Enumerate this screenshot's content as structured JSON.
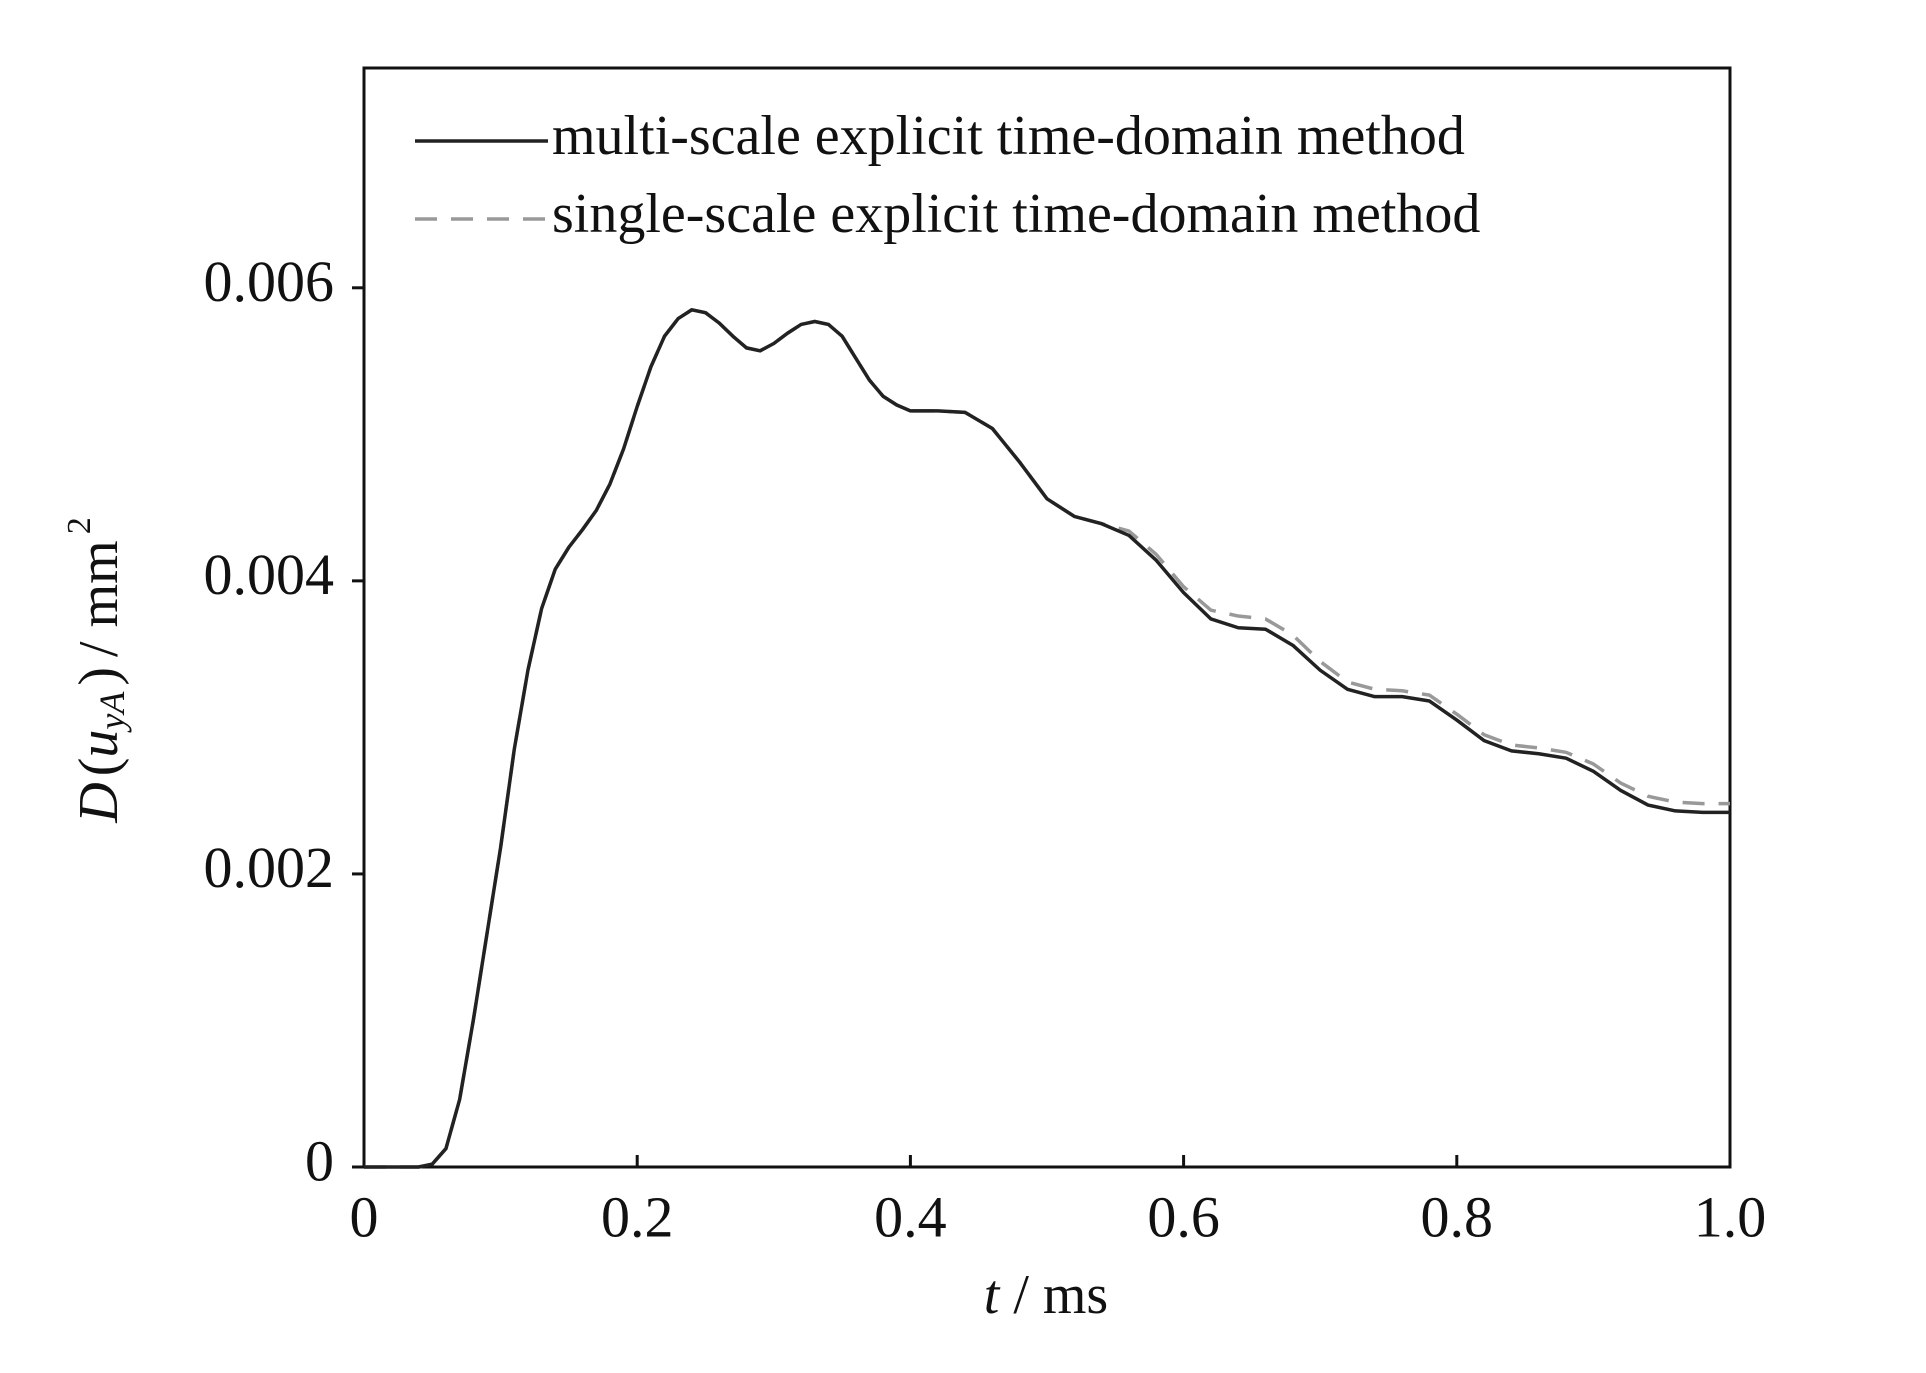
{
  "chart_data": {
    "type": "line",
    "x_label": [
      "t",
      "/ ms"
    ],
    "y_label": [
      "D",
      "(",
      "u",
      "yA",
      ")",
      "/ mm",
      "2"
    ],
    "x": [
      0,
      0.02,
      0.04,
      0.05,
      0.06,
      0.07,
      0.08,
      0.09,
      0.1,
      0.11,
      0.12,
      0.13,
      0.14,
      0.15,
      0.16,
      0.17,
      0.18,
      0.19,
      0.2,
      0.21,
      0.22,
      0.23,
      0.24,
      0.25,
      0.26,
      0.27,
      0.28,
      0.29,
      0.3,
      0.31,
      0.32,
      0.33,
      0.34,
      0.35,
      0.36,
      0.37,
      0.38,
      0.39,
      0.4,
      0.42,
      0.44,
      0.46,
      0.48,
      0.5,
      0.52,
      0.54,
      0.56,
      0.58,
      0.6,
      0.62,
      0.64,
      0.66,
      0.68,
      0.7,
      0.72,
      0.74,
      0.76,
      0.78,
      0.8,
      0.82,
      0.84,
      0.86,
      0.88,
      0.9,
      0.92,
      0.94,
      0.96,
      0.98,
      1
    ],
    "series": [
      {
        "name": "multi-scale explicit time-domain method",
        "color": "#222222",
        "dash": "solid",
        "values": [
          0,
          0,
          0,
          2e-05,
          0.000126,
          0.00046,
          0.001,
          0.00159,
          0.00218,
          0.00285,
          0.00339,
          0.00381,
          0.00408,
          0.00423,
          0.00435,
          0.00448,
          0.00466,
          0.0049,
          0.00519,
          0.00546,
          0.00567,
          0.00579,
          0.00585,
          0.00583,
          0.00576,
          0.00567,
          0.00559,
          0.00557,
          0.00562,
          0.00569,
          0.00575,
          0.00577,
          0.00575,
          0.00567,
          0.00552,
          0.00537,
          0.00526,
          0.0052,
          0.00516,
          0.00516,
          0.00515,
          0.00504,
          0.00481,
          0.00456,
          0.00444,
          0.00439,
          0.00431,
          0.00414,
          0.00392,
          0.00374,
          0.00368,
          0.00367,
          0.00356,
          0.00339,
          0.00326,
          0.00321,
          0.00321,
          0.00318,
          0.00305,
          0.00291,
          0.00284,
          0.00282,
          0.00279,
          0.0027,
          0.00257,
          0.00247,
          0.00243,
          0.00242,
          0.00242
        ]
      },
      {
        "name": "single-scale explicit time-domain method",
        "color": "#999999",
        "dash": "dashed",
        "values": [
          0,
          0,
          0,
          2e-05,
          0.000126,
          0.00046,
          0.001,
          0.00159,
          0.00218,
          0.00285,
          0.00339,
          0.00381,
          0.00408,
          0.00423,
          0.00435,
          0.00448,
          0.00466,
          0.0049,
          0.00519,
          0.00546,
          0.00567,
          0.00579,
          0.00585,
          0.00583,
          0.00576,
          0.00567,
          0.00559,
          0.00557,
          0.00562,
          0.00569,
          0.00575,
          0.00577,
          0.00575,
          0.00567,
          0.00552,
          0.00537,
          0.00526,
          0.0052,
          0.00516,
          0.00516,
          0.00515,
          0.00504,
          0.00481,
          0.00456,
          0.00444,
          0.00439,
          0.00434,
          0.00418,
          0.00396,
          0.0038,
          0.00376,
          0.00374,
          0.00363,
          0.00345,
          0.00331,
          0.00326,
          0.00325,
          0.00322,
          0.00309,
          0.00295,
          0.00288,
          0.00286,
          0.00283,
          0.00275,
          0.00262,
          0.00253,
          0.00249,
          0.00248,
          0.00248
        ]
      }
    ],
    "xlim": [
      0,
      1
    ],
    "xticks": [
      0,
      0.2,
      0.4,
      0.6,
      0.8,
      {
        "value": 1,
        "label": "1.0"
      }
    ],
    "ylim": [
      0,
      0.0075
    ],
    "yticks": [
      0,
      0.002,
      0.004,
      0.006
    ],
    "grid": false,
    "legend": "upper left"
  }
}
